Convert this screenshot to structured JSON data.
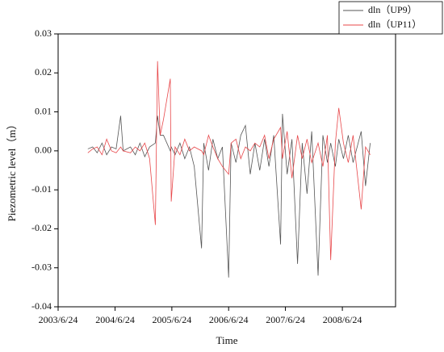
{
  "chart_data": {
    "type": "line",
    "xlabel": "Time",
    "ylabel": "Piezometric level（m）",
    "x": [
      "2004/1/1",
      "2004/2/1",
      "2004/3/1",
      "2004/4/1",
      "2004/5/1",
      "2004/6/1",
      "2004/7/1",
      "2004/7/30",
      "2004/8/15",
      "2004/10/1",
      "2004/11/1",
      "2004/12/1",
      "2005/1/1",
      "2005/2/1",
      "2005/3/10",
      "2005/3/24",
      "2005/4/10",
      "2005/5/1",
      "2005/6/14",
      "2005/6/20",
      "2005/7/15",
      "2005/8/15",
      "2005/9/15",
      "2005/10/15",
      "2005/11/15",
      "2006/1/1",
      "2006/1/15",
      "2006/2/15",
      "2006/3/15",
      "2006/4/15",
      "2006/5/15",
      "2006/6/24",
      "2006/7/10",
      "2006/8/10",
      "2006/9/10",
      "2006/10/10",
      "2006/11/10",
      "2006/12/10",
      "2007/1/10",
      "2007/2/10",
      "2007/3/10",
      "2007/4/10",
      "2007/5/24",
      "2007/6/5",
      "2007/7/5",
      "2007/8/5",
      "2007/9/10",
      "2007/10/10",
      "2007/11/10",
      "2007/12/10",
      "2008/1/20",
      "2008/2/20",
      "2008/3/20",
      "2008/4/10",
      "2008/5/10",
      "2008/6/1",
      "2008/7/1",
      "2008/8/1",
      "2008/9/1",
      "2008/10/23",
      "2008/11/20",
      "2008/12/20"
    ],
    "series": [
      {
        "name": "dln（UP9）",
        "color": "#555555",
        "values": [
          0.0005,
          0.001,
          -0.0005,
          0.002,
          -0.001,
          0.001,
          0.0005,
          0.009,
          0.0,
          0.001,
          -0.001,
          0.002,
          -0.0015,
          0.001,
          0.002,
          0.009,
          0.004,
          0.004,
          0.0,
          0.001,
          -0.001,
          0.002,
          -0.002,
          0.001,
          -0.004,
          -0.025,
          0.002,
          -0.005,
          0.003,
          -0.002,
          0.001,
          -0.0325,
          0.002,
          -0.003,
          0.004,
          0.0065,
          -0.006,
          0.002,
          -0.005,
          0.003,
          -0.004,
          0.004,
          -0.024,
          0.0095,
          -0.006,
          0.003,
          -0.029,
          0.002,
          -0.011,
          0.005,
          -0.032,
          0.004,
          -0.003,
          0.002,
          -0.004,
          0.003,
          -0.002,
          0.004,
          -0.003,
          0.005,
          -0.009,
          0.002
        ]
      },
      {
        "name": "dln（UP11）",
        "color": "#e8474a",
        "values": [
          -0.0005,
          0.0005,
          0.001,
          -0.001,
          0.003,
          0.0,
          -0.0005,
          0.001,
          0.0,
          -0.0005,
          0.001,
          0.0,
          0.002,
          -0.002,
          -0.019,
          0.023,
          0.004,
          0.008,
          0.0185,
          -0.013,
          0.001,
          -0.001,
          0.003,
          0.0,
          0.001,
          0.0,
          -0.001,
          0.004,
          0.001,
          -0.002,
          -0.004,
          -0.006,
          0.002,
          0.003,
          -0.002,
          0.001,
          0.0,
          0.002,
          0.001,
          0.004,
          -0.002,
          0.003,
          0.006,
          -0.002,
          0.005,
          -0.007,
          0.004,
          -0.002,
          0.003,
          -0.003,
          0.002,
          -0.004,
          0.004,
          -0.028,
          0.002,
          0.011,
          0.002,
          -0.003,
          0.004,
          -0.015,
          0.001,
          -0.001
        ]
      }
    ],
    "xlim": [
      "2003/6/24",
      "2009/6/1"
    ],
    "xticks": [
      "2003/6/24",
      "2004/6/24",
      "2005/6/24",
      "2006/6/24",
      "2007/6/24",
      "2008/6/24"
    ],
    "ylim": [
      -0.04,
      0.03
    ],
    "yticks": [
      -0.04,
      -0.03,
      -0.02,
      -0.01,
      {
        "value": 0,
        "label": "0.00"
      },
      0.01,
      0.02,
      0.03
    ],
    "legend": "top-right"
  }
}
